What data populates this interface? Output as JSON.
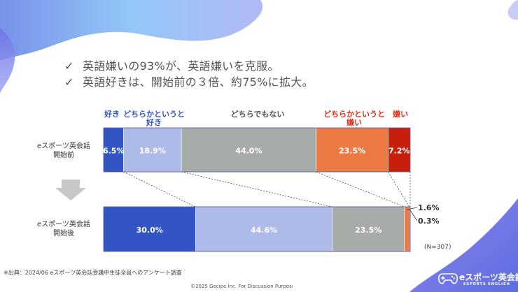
{
  "colors": {
    "like": "#3354c4",
    "somewhat_like": "#aebbe9",
    "neither": "#a8aca9",
    "somewhat_dislike": "#ec7a45",
    "dislike": "#c81f0c",
    "like_text": "#3354c4",
    "dislike_text": "#d9301a",
    "neutral_text": "#555555"
  },
  "bullets": [
    {
      "mark": "✓",
      "text": "英語嫌いの93%が、英語嫌いを克服。"
    },
    {
      "mark": "✓",
      "text": "英語好きは、開始前の３倍、約75%に拡大。"
    }
  ],
  "chart_data": {
    "type": "bar",
    "orientation": "horizontal",
    "stacked": true,
    "normalized": true,
    "title": "",
    "xlabel": "",
    "ylabel": "",
    "categories": [
      "eスポーツ英会話開始前",
      "eスポーツ英会話開始後"
    ],
    "series": [
      {
        "name": "好き",
        "values": [
          6.5,
          30.0
        ],
        "labels": [
          "6.5%",
          "30.0%"
        ]
      },
      {
        "name": "どちらかというと好き",
        "values": [
          18.9,
          44.6
        ],
        "labels": [
          "18.9%",
          "44.6%"
        ]
      },
      {
        "name": "どちらでもない",
        "values": [
          44.0,
          23.5
        ],
        "labels": [
          "44.0%",
          "23.5%"
        ]
      },
      {
        "name": "どちらかというと嫌い",
        "values": [
          23.5,
          1.6
        ],
        "labels": [
          "23.5%",
          "1.6%"
        ]
      },
      {
        "name": "嫌い",
        "values": [
          7.2,
          0.3
        ],
        "labels": [
          "7.2%",
          "0.3%"
        ]
      }
    ],
    "legend": {
      "position": "top",
      "entries": [
        {
          "line1": "好き",
          "line2": ""
        },
        {
          "line1": "どちらかというと",
          "line2": "好き"
        },
        {
          "line1": "どちらでもない",
          "line2": ""
        },
        {
          "line1": "どちらかというと",
          "line2": "嫌い"
        },
        {
          "line1": "嫌い",
          "line2": ""
        }
      ]
    },
    "row_labels": [
      {
        "line1": "eスポーツ英会話",
        "line2": "開始前"
      },
      {
        "line1": "eスポーツ英会話",
        "line2": "開始後"
      }
    ],
    "sample_size": "(N=307)"
  },
  "footer": {
    "source": "※出典：2024/06 eスポーツ英会話受講中生徒全員へのアンケート調査",
    "copyright": "©2025 Gecipe Inc. For Discussion Purpose Only"
  },
  "logo": {
    "name": "eスポーツ英会話",
    "sub": "ESPORTS ENGLISH",
    "icon": "gamepad-icon"
  }
}
